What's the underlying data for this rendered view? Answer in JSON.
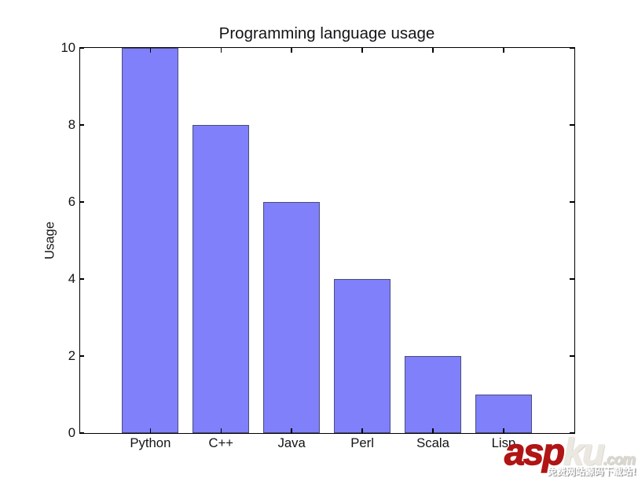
{
  "chart_data": {
    "type": "bar",
    "title": "Programming language usage",
    "xlabel": "",
    "ylabel": "Usage",
    "categories": [
      "Python",
      "C++",
      "Java",
      "Perl",
      "Scala",
      "Lisp"
    ],
    "values": [
      10,
      8,
      6,
      4,
      2,
      1
    ],
    "ylim": [
      0,
      10
    ],
    "yticks": [
      0,
      2,
      4,
      6,
      8,
      10
    ],
    "xlim": [
      -1,
      6
    ],
    "grid": false,
    "legend": false,
    "tick_direction": "in",
    "bar_fill_color": "#7f80fa",
    "bar_edge_color": "#4c4c7a",
    "axis_color": "#000000",
    "text_color": "#141418"
  },
  "watermark": {
    "brand_red": "asp",
    "brand_gray": "ku",
    "brand_suffix": ".com",
    "tagline": "免费网站源码下载站!",
    "brand_red_color": "#b01414",
    "brand_gray_color": "#eae8e0",
    "brand_suffix_color": "#d9d7cf",
    "tagline_color": "#ffffff"
  }
}
